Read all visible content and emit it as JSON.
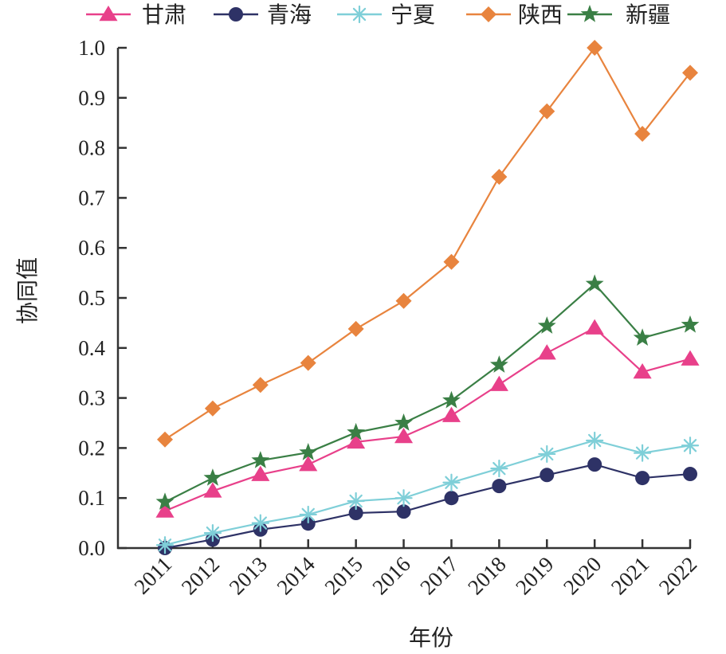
{
  "chart_data": {
    "type": "line",
    "title": "",
    "xlabel": "年份",
    "ylabel": "协同值",
    "x": [
      "2011",
      "2012",
      "2013",
      "2014",
      "2015",
      "2016",
      "2017",
      "2018",
      "2019",
      "2020",
      "2021",
      "2022"
    ],
    "ylim": [
      0,
      1.0
    ],
    "yticks": [
      "0.0",
      "0.1",
      "0.2",
      "0.3",
      "0.4",
      "0.5",
      "0.6",
      "0.7",
      "0.8",
      "0.9",
      "1.0"
    ],
    "grid": false,
    "legend_position": "top",
    "series": [
      {
        "name": "甘肃",
        "marker": "triangle",
        "color": "#E8408A",
        "values": [
          0.074,
          0.114,
          0.147,
          0.167,
          0.212,
          0.223,
          0.265,
          0.327,
          0.39,
          0.44,
          0.352,
          0.378
        ]
      },
      {
        "name": "青海",
        "marker": "circle",
        "color": "#2E3266",
        "values": [
          0.0,
          0.017,
          0.037,
          0.049,
          0.07,
          0.073,
          0.1,
          0.124,
          0.146,
          0.167,
          0.14,
          0.148
        ]
      },
      {
        "name": "宁夏",
        "marker": "asterisk",
        "color": "#7FCFD8",
        "values": [
          0.006,
          0.03,
          0.05,
          0.067,
          0.094,
          0.1,
          0.131,
          0.159,
          0.188,
          0.215,
          0.19,
          0.205
        ]
      },
      {
        "name": "陕西",
        "marker": "diamond",
        "color": "#E8843E",
        "values": [
          0.217,
          0.279,
          0.326,
          0.37,
          0.438,
          0.494,
          0.572,
          0.742,
          0.873,
          1.0,
          0.828,
          0.95
        ]
      },
      {
        "name": "新疆",
        "marker": "star",
        "color": "#3A7F45",
        "values": [
          0.092,
          0.14,
          0.175,
          0.191,
          0.231,
          0.25,
          0.295,
          0.366,
          0.444,
          0.528,
          0.42,
          0.446
        ]
      }
    ]
  }
}
